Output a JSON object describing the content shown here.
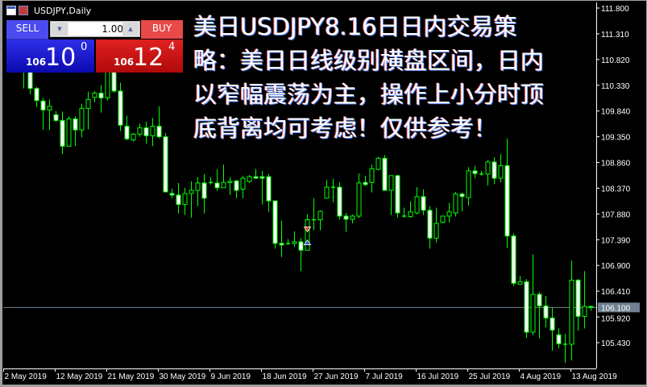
{
  "window": {
    "title": "USDJPY,Daily"
  },
  "trade_panel": {
    "sell_label": "SELL",
    "buy_label": "BUY",
    "volume": "1.00",
    "sell_price": {
      "prefix": "106",
      "big": "10",
      "sup": "0"
    },
    "buy_price": {
      "prefix": "106",
      "big": "12",
      "sup": "4"
    },
    "sell_color": "#1a1ad0",
    "buy_color": "#d01818"
  },
  "overlay_text": {
    "lines": [
      "美日USDJPY8.16日日内交易策",
      "略：美日日线级别横盘区间，日内",
      "以窄幅震荡为主，操作上小分时顶",
      "底背离均可考虑！仅供参考！"
    ]
  },
  "chart_data": {
    "type": "candlestick",
    "symbol": "USDJPY",
    "timeframe": "Daily",
    "colors": {
      "background": "#000000",
      "candle": "#00ff00",
      "bear_body": "#ffffff",
      "bull_body": "#000000",
      "axis": "#ffffff",
      "price_line": "#708090"
    },
    "ylim": [
      105.0,
      112.0
    ],
    "y_ticks": [
      "111.800",
      "111.310",
      "110.820",
      "110.330",
      "109.840",
      "109.350",
      "108.860",
      "108.370",
      "107.880",
      "107.390",
      "106.900",
      "106.410",
      "105.920",
      "105.430"
    ],
    "x_ticks": [
      "2 May 2019",
      "12 May 2019",
      "21 May 2019",
      "30 May 2019",
      "9 Jun 2019",
      "18 Jun 2019",
      "27 Jun 2019",
      "7 Jul 2019",
      "16 Jul 2019",
      "25 Jul 2019",
      "4 Aug 2019",
      "13 Aug 2019"
    ],
    "current_price": "106.100",
    "ohlc": [
      [
        111.03,
        111.19,
        110.65,
        110.8
      ],
      [
        110.73,
        111.11,
        110.61,
        111.0
      ],
      [
        111.0,
        111.06,
        110.27,
        110.61
      ],
      [
        110.65,
        110.8,
        110.16,
        110.27
      ],
      [
        110.27,
        110.3,
        109.92,
        110.04
      ],
      [
        110.03,
        110.09,
        109.48,
        109.86
      ],
      [
        109.86,
        110.06,
        109.48,
        109.93
      ],
      [
        109.77,
        109.84,
        109.63,
        109.66
      ],
      [
        109.66,
        109.83,
        109.02,
        109.17
      ],
      [
        109.17,
        109.74,
        109.17,
        109.69
      ],
      [
        109.69,
        109.74,
        109.17,
        109.48
      ],
      [
        109.48,
        109.98,
        109.34,
        109.89
      ],
      [
        109.89,
        110.21,
        109.49,
        110.06
      ],
      [
        110.1,
        110.22,
        110.01,
        110.18
      ],
      [
        110.18,
        110.33,
        109.81,
        110.09
      ],
      [
        110.09,
        110.88,
        110.04,
        110.65
      ],
      [
        110.65,
        110.8,
        110.19,
        110.22
      ],
      [
        110.22,
        110.38,
        109.46,
        109.57
      ],
      [
        109.55,
        109.75,
        109.28,
        109.31
      ],
      [
        109.29,
        109.42,
        109.26,
        109.4
      ],
      [
        109.4,
        109.6,
        109.35,
        109.52
      ],
      [
        109.52,
        109.64,
        109.22,
        109.37
      ],
      [
        109.37,
        109.71,
        109.17,
        109.55
      ],
      [
        109.55,
        109.93,
        109.32,
        109.35
      ],
      [
        109.35,
        109.42,
        108.29,
        108.3
      ],
      [
        108.27,
        108.36,
        108.18,
        108.24
      ],
      [
        108.24,
        108.47,
        107.89,
        108.06
      ],
      [
        108.06,
        108.38,
        107.86,
        108.27
      ],
      [
        108.27,
        108.5,
        107.81,
        108.33
      ],
      [
        108.33,
        108.58,
        108.03,
        108.47
      ],
      [
        108.47,
        108.64,
        107.89,
        108.18
      ],
      [
        108.48,
        108.58,
        108.44,
        108.48
      ],
      [
        108.47,
        108.73,
        108.32,
        108.38
      ],
      [
        108.38,
        108.82,
        108.38,
        108.48
      ],
      [
        108.48,
        108.58,
        108.24,
        108.5
      ],
      [
        108.51,
        108.53,
        108.18,
        108.33
      ],
      [
        108.35,
        108.61,
        108.18,
        108.56
      ],
      [
        108.5,
        108.62,
        108.47,
        108.59
      ],
      [
        108.59,
        108.74,
        108.55,
        108.56
      ],
      [
        108.59,
        108.7,
        108.06,
        108.56
      ],
      [
        108.59,
        108.64,
        107.92,
        108.13
      ],
      [
        108.13,
        108.13,
        107.22,
        107.32
      ],
      [
        107.32,
        107.75,
        107.06,
        107.29
      ],
      [
        107.32,
        107.4,
        107.29,
        107.32
      ],
      [
        107.32,
        107.55,
        107.25,
        107.35
      ],
      [
        107.35,
        107.42,
        106.79,
        107.19
      ],
      [
        107.19,
        107.87,
        107.19,
        107.77
      ],
      [
        107.77,
        108.18,
        107.57,
        107.77
      ],
      [
        107.77,
        107.95,
        107.57,
        107.93
      ],
      [
        108.18,
        108.53,
        108.18,
        108.39
      ],
      [
        108.39,
        108.55,
        108.1,
        108.39
      ],
      [
        108.39,
        108.48,
        107.77,
        107.84
      ],
      [
        107.84,
        107.9,
        107.54,
        107.78
      ],
      [
        107.78,
        107.87,
        107.7,
        107.84
      ],
      [
        107.84,
        108.65,
        107.8,
        108.47
      ],
      [
        108.48,
        108.61,
        108.41,
        108.44
      ],
      [
        108.48,
        108.82,
        108.29,
        108.74
      ],
      [
        108.73,
        108.97,
        108.71,
        108.94
      ],
      [
        108.94,
        109.0,
        108.32,
        108.33
      ],
      [
        108.33,
        108.61,
        107.86,
        108.61
      ],
      [
        108.61,
        108.62,
        107.81,
        107.9
      ],
      [
        107.84,
        108.0,
        107.81,
        107.84
      ],
      [
        107.83,
        108.12,
        107.81,
        107.92
      ],
      [
        107.9,
        108.39,
        107.87,
        108.21
      ],
      [
        108.21,
        108.35,
        107.86,
        107.95
      ],
      [
        107.95,
        108.03,
        107.22,
        107.42
      ],
      [
        107.42,
        108.0,
        107.34,
        107.7
      ],
      [
        107.72,
        107.84,
        107.7,
        107.84
      ],
      [
        107.84,
        108.09,
        107.72,
        107.92
      ],
      [
        107.9,
        108.3,
        107.83,
        108.26
      ],
      [
        108.26,
        108.29,
        107.93,
        108.21
      ],
      [
        108.19,
        108.77,
        108.04,
        108.7
      ],
      [
        108.7,
        108.8,
        108.56,
        108.65
      ],
      [
        108.64,
        108.7,
        108.61,
        108.64
      ],
      [
        108.64,
        108.91,
        108.42,
        108.87
      ],
      [
        108.87,
        108.96,
        108.45,
        108.56
      ],
      [
        108.56,
        109.02,
        108.48,
        108.8
      ],
      [
        108.8,
        109.32,
        107.23,
        107.46
      ],
      [
        107.46,
        107.51,
        106.51,
        106.56
      ],
      [
        106.54,
        106.7,
        106.54,
        106.59
      ],
      [
        106.59,
        106.64,
        105.52,
        105.63
      ],
      [
        105.63,
        107.11,
        105.57,
        106.35
      ],
      [
        106.35,
        106.39,
        105.51,
        106.13
      ],
      [
        106.13,
        106.32,
        105.72,
        105.9
      ],
      [
        105.9,
        106.1,
        105.28,
        105.67
      ],
      [
        105.58,
        105.7,
        105.32,
        105.41
      ],
      [
        105.4,
        105.6,
        105.05,
        105.4
      ],
      [
        105.4,
        106.99,
        105.09,
        106.62
      ],
      [
        106.62,
        106.64,
        105.66,
        105.93
      ],
      [
        105.93,
        106.79,
        105.7,
        106.12
      ],
      [
        106.12,
        106.13,
        106.04,
        106.1
      ]
    ],
    "trade_markers": [
      {
        "candle_index": 46,
        "type": "sell-arrow-down",
        "price": 107.57,
        "color": "#e04020"
      },
      {
        "candle_index": 46,
        "type": "buy-arrow-up",
        "price": 107.34,
        "color": "#2060c0"
      }
    ]
  }
}
